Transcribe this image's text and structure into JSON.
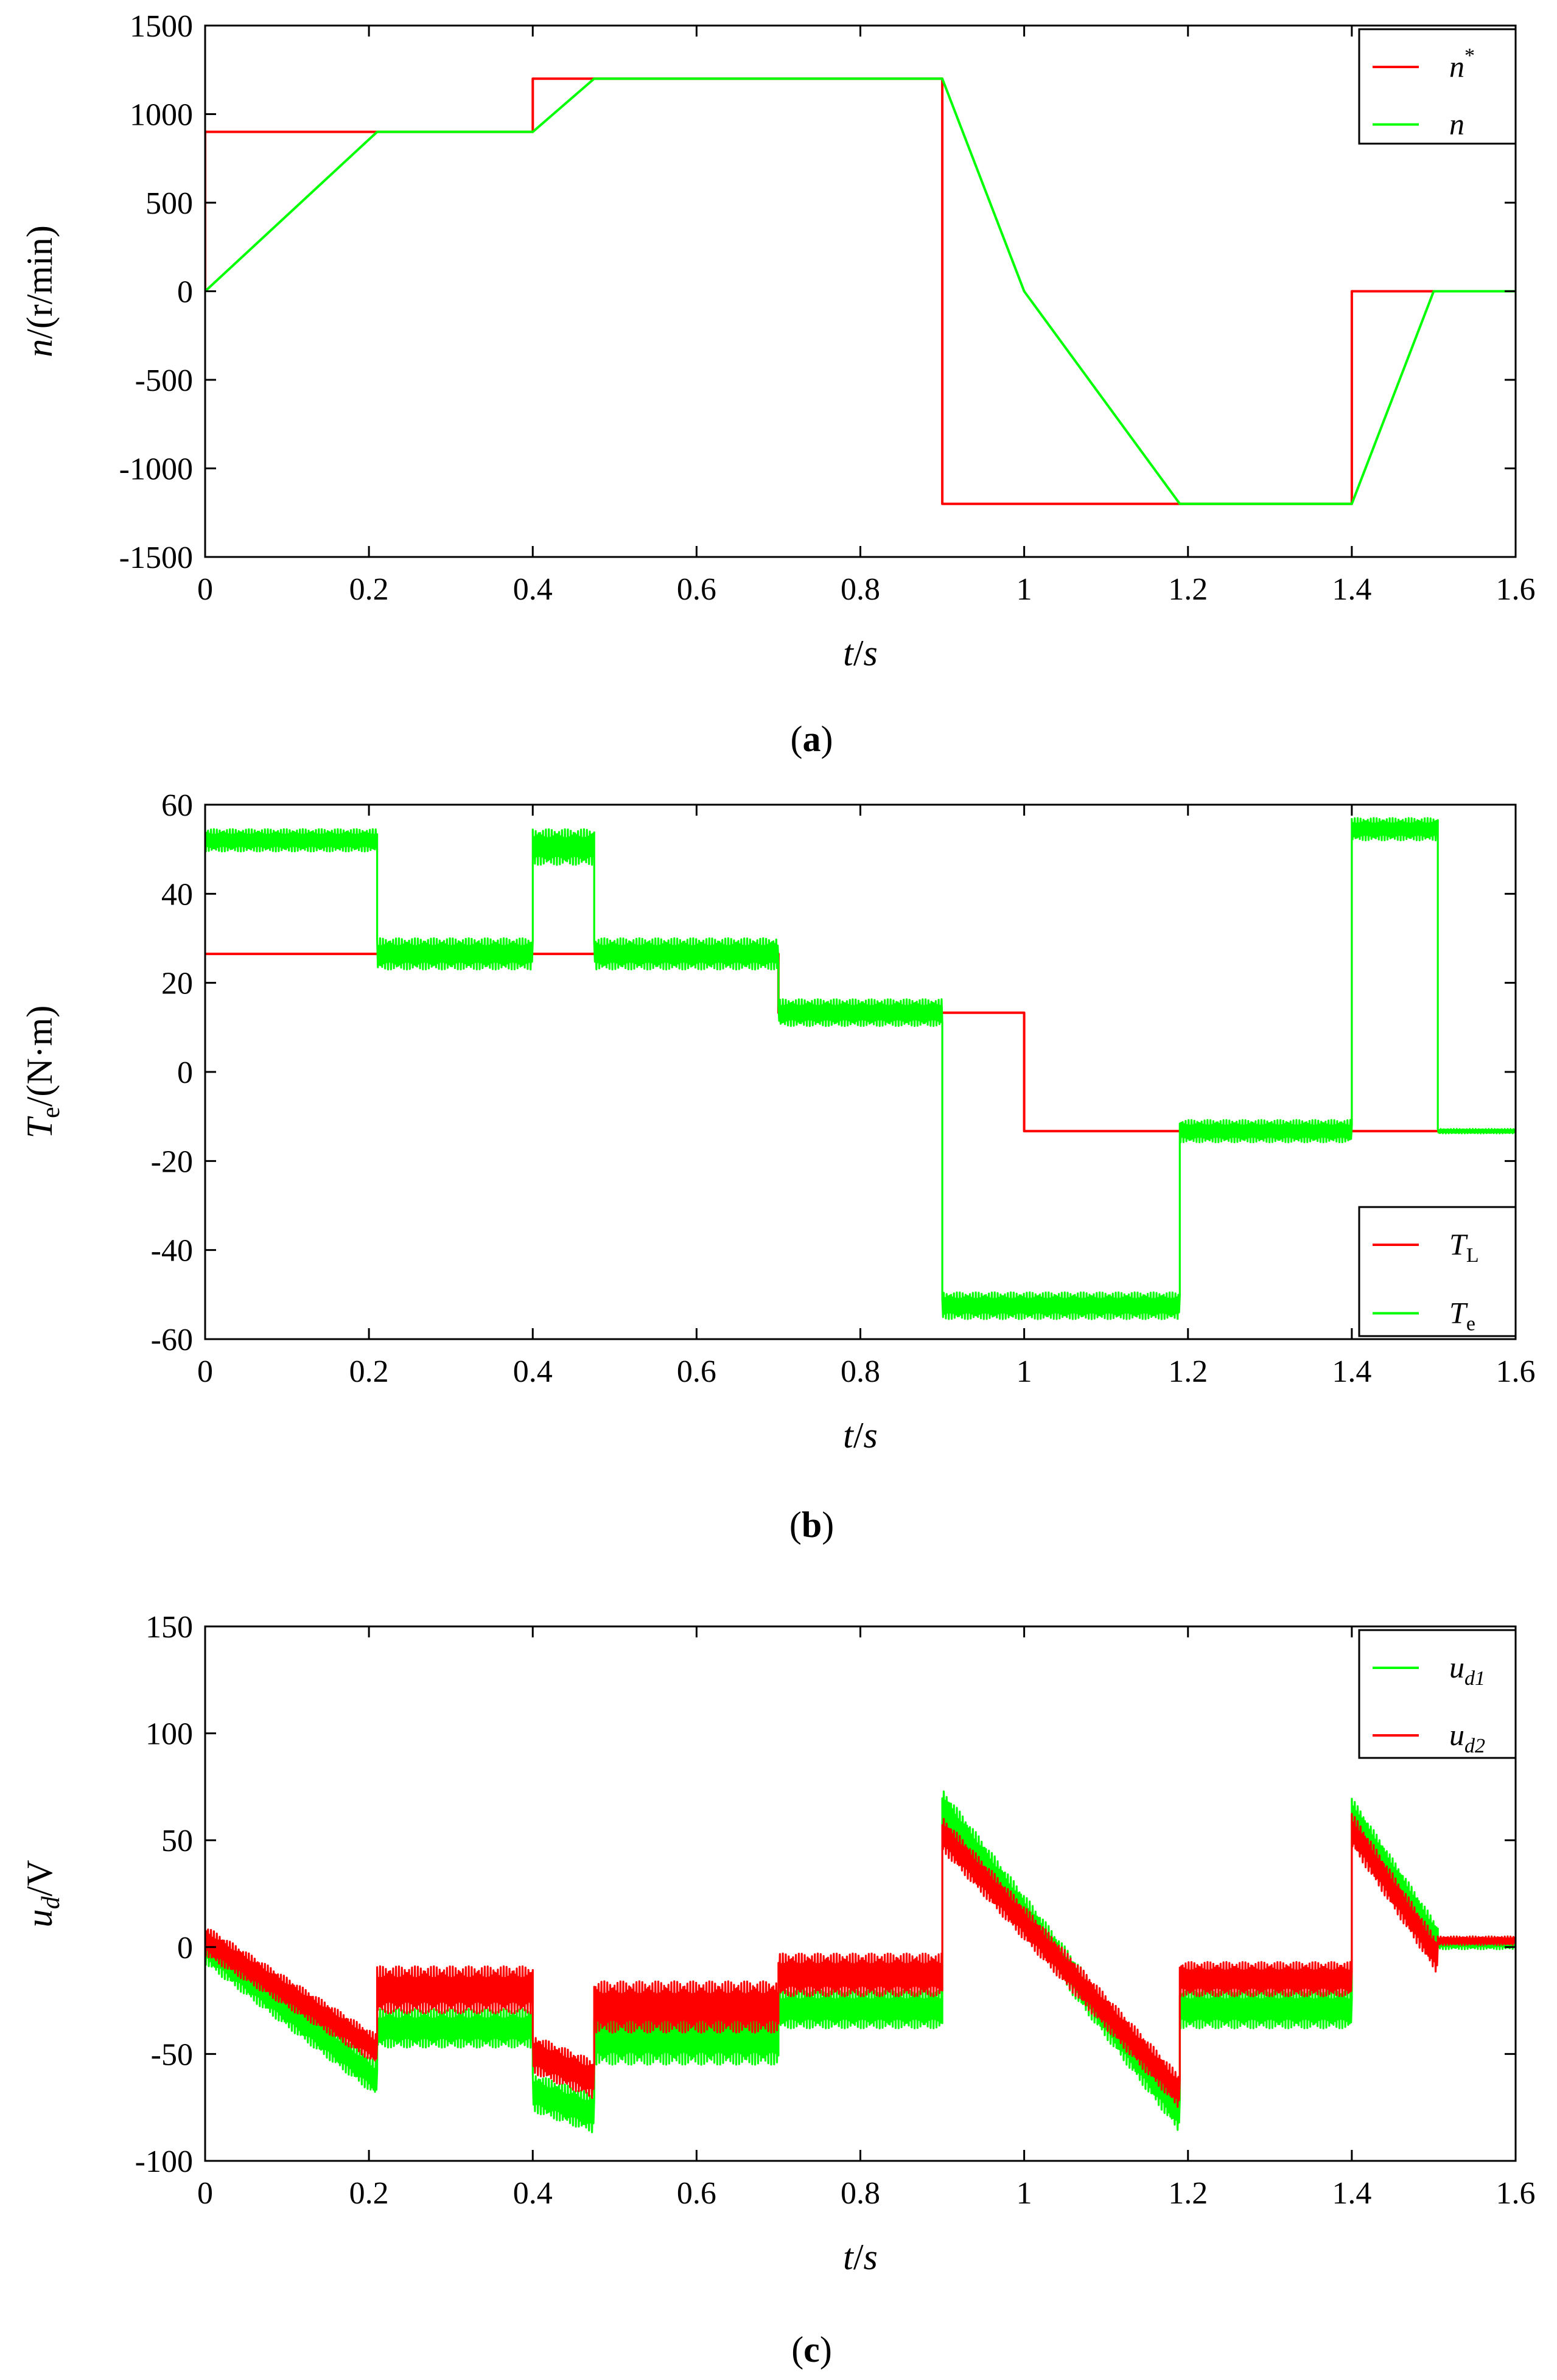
{
  "chart_data": [
    {
      "id": "a",
      "type": "line",
      "caption": {
        "open": "(",
        "letter": "a",
        "close": ")"
      },
      "xlabel": {
        "main": "t",
        "slash": "/",
        "unit": "s"
      },
      "ylabel": {
        "main": "n",
        "slash": "/",
        "unit": "(r/min)"
      },
      "xlim": [
        0,
        1.6
      ],
      "ylim": [
        -1500,
        1500
      ],
      "xticks": [
        0,
        0.2,
        0.4,
        0.6,
        0.8,
        1,
        1.2,
        1.4,
        1.6
      ],
      "xticklabels": [
        "0",
        "0.2",
        "0.4",
        "0.6",
        "0.8",
        "1",
        "1.2",
        "1.4",
        "1.6"
      ],
      "yticks": [
        1500,
        1000,
        500,
        0,
        -500,
        -1000,
        -1500
      ],
      "yticklabels": [
        "1500",
        "1000",
        "500",
        "0",
        "-500",
        "-1000",
        "-1500"
      ],
      "legend": {
        "placement": "top-right"
      },
      "series": [
        {
          "name": "n*",
          "label_main": "n",
          "label_sup": "*",
          "label_sub": "",
          "color": "#ff0000",
          "x": [
            0,
            0,
            0.4,
            0.4,
            0.9,
            0.9,
            1.4,
            1.4,
            1.6
          ],
          "y": [
            0,
            900,
            900,
            1200,
            1200,
            -1200,
            -1200,
            0,
            0
          ]
        },
        {
          "name": "n",
          "label_main": "n",
          "label_sup": "",
          "label_sub": "",
          "color": "#00ff00",
          "x": [
            0,
            0.21,
            0.4,
            0.475,
            0.9,
            1.0,
            1.19,
            1.4,
            1.5,
            1.6
          ],
          "y": [
            0,
            900,
            900,
            1200,
            1200,
            0,
            -1200,
            -1200,
            0,
            0
          ]
        }
      ]
    },
    {
      "id": "b",
      "type": "line",
      "caption": {
        "open": "(",
        "letter": "b",
        "close": ")"
      },
      "xlabel": {
        "main": "t",
        "slash": "/",
        "unit": "s"
      },
      "ylabel": {
        "main": "T",
        "sub": "e",
        "slash": "/",
        "unit": "(N·m)"
      },
      "xlim": [
        0,
        1.6
      ],
      "ylim": [
        -60,
        60
      ],
      "xticks": [
        0,
        0.2,
        0.4,
        0.6,
        0.8,
        1,
        1.2,
        1.4,
        1.6
      ],
      "xticklabels": [
        "0",
        "0.2",
        "0.4",
        "0.6",
        "0.8",
        "1",
        "1.2",
        "1.4",
        "1.6"
      ],
      "yticks": [
        60,
        40,
        20,
        0,
        -20,
        -40,
        -60
      ],
      "yticklabels": [
        "60",
        "40",
        "20",
        "0",
        "-20",
        "-40",
        "-60"
      ],
      "legend": {
        "placement": "bottom-right"
      },
      "series": [
        {
          "name": "TL",
          "label_main": "T",
          "label_sup": "",
          "label_sub": "L",
          "color": "#ff0000",
          "x": [
            0,
            0.7,
            0.7,
            1.0,
            1.0,
            1.6
          ],
          "y": [
            26.5,
            26.5,
            13.3,
            13.3,
            -13.3,
            -13.3
          ]
        },
        {
          "name": "Te",
          "label_main": "T",
          "label_sup": "",
          "label_sub": "e",
          "color": "#00ff00",
          "segments": [
            {
              "t0": 0.0,
              "t1": 0.21,
              "mean": 52,
              "ripple": 2.5
            },
            {
              "t0": 0.21,
              "t1": 0.4,
              "mean": 26.5,
              "ripple": 3.5
            },
            {
              "t0": 0.4,
              "t1": 0.475,
              "mean": 50.5,
              "ripple": 4
            },
            {
              "t0": 0.475,
              "t1": 0.7,
              "mean": 26.5,
              "ripple": 3.5
            },
            {
              "t0": 0.7,
              "t1": 0.9,
              "mean": 13.3,
              "ripple": 3
            },
            {
              "t0": 0.9,
              "t1": 1.19,
              "mean": -52.5,
              "ripple": 3
            },
            {
              "t0": 1.19,
              "t1": 1.4,
              "mean": -13.3,
              "ripple": 2.5
            },
            {
              "t0": 1.4,
              "t1": 1.505,
              "mean": 54.5,
              "ripple": 2.5
            },
            {
              "t0": 1.505,
              "t1": 1.6,
              "mean": -13.3,
              "ripple": 0.5
            }
          ]
        }
      ]
    },
    {
      "id": "c",
      "type": "line",
      "caption": {
        "open": "(",
        "letter": "c",
        "close": ")"
      },
      "xlabel": {
        "main": "t",
        "slash": "/",
        "unit": "s"
      },
      "ylabel": {
        "main": "u",
        "sub": "d",
        "slash": "/",
        "unit": "V"
      },
      "xlim": [
        0,
        1.6
      ],
      "ylim": [
        -100,
        150
      ],
      "xticks": [
        0,
        0.2,
        0.4,
        0.6,
        0.8,
        1,
        1.2,
        1.4,
        1.6
      ],
      "xticklabels": [
        "0",
        "0.2",
        "0.4",
        "0.6",
        "0.8",
        "1",
        "1.2",
        "1.4",
        "1.6"
      ],
      "yticks": [
        150,
        100,
        50,
        0,
        -50,
        -100
      ],
      "yticklabels": [
        "150",
        "100",
        "50",
        "0",
        "-50",
        "-100"
      ],
      "legend": {
        "placement": "top-right"
      },
      "series": [
        {
          "name": "ud1",
          "label_main": "u",
          "label_sup": "",
          "label_sub": "d1",
          "color": "#00ff00",
          "segments": [
            {
              "t0": 0.0,
              "t1": 0.21,
              "v0": 0,
              "v1": -62,
              "ripple": 8
            },
            {
              "t0": 0.21,
              "t1": 0.4,
              "v0": -38,
              "v1": -38,
              "ripple": 9
            },
            {
              "t0": 0.4,
              "t1": 0.475,
              "v0": -68,
              "v1": -78,
              "ripple": 9
            },
            {
              "t0": 0.475,
              "t1": 0.7,
              "v0": -43,
              "v1": -43,
              "ripple": 12
            },
            {
              "t0": 0.7,
              "t1": 0.9,
              "v0": -29,
              "v1": -29,
              "ripple": 9
            },
            {
              "t0": 0.9,
              "t1": 1.19,
              "v0": 65,
              "v1": -78,
              "ripple": 9
            },
            {
              "t0": 1.19,
              "t1": 1.4,
              "v0": -29,
              "v1": -29,
              "ripple": 9
            },
            {
              "t0": 1.4,
              "t1": 1.505,
              "v0": 63,
              "v1": 3,
              "ripple": 7
            },
            {
              "t0": 1.505,
              "t1": 1.6,
              "v0": 2,
              "v1": 2,
              "ripple": 3
            }
          ]
        },
        {
          "name": "ud2",
          "label_main": "u",
          "label_sup": "",
          "label_sub": "d2",
          "color": "#ff0000",
          "segments": [
            {
              "t0": 0.0,
              "t1": 0.21,
              "v0": 3,
              "v1": -48,
              "ripple": 7
            },
            {
              "t0": 0.21,
              "t1": 0.4,
              "v0": -20,
              "v1": -20,
              "ripple": 11
            },
            {
              "t0": 0.4,
              "t1": 0.475,
              "v0": -50,
              "v1": -62,
              "ripple": 9
            },
            {
              "t0": 0.475,
              "t1": 0.7,
              "v0": -28,
              "v1": -28,
              "ripple": 12
            },
            {
              "t0": 0.7,
              "t1": 0.9,
              "v0": -13,
              "v1": -13,
              "ripple": 10
            },
            {
              "t0": 0.9,
              "t1": 1.19,
              "v0": 53,
              "v1": -68,
              "ripple": 8
            },
            {
              "t0": 1.19,
              "t1": 1.4,
              "v0": -15,
              "v1": -15,
              "ripple": 8
            },
            {
              "t0": 1.4,
              "t1": 1.505,
              "v0": 55,
              "v1": -5,
              "ripple": 8
            },
            {
              "t0": 1.505,
              "t1": 1.6,
              "v0": 3,
              "v1": 3,
              "ripple": 2
            }
          ]
        }
      ]
    }
  ]
}
